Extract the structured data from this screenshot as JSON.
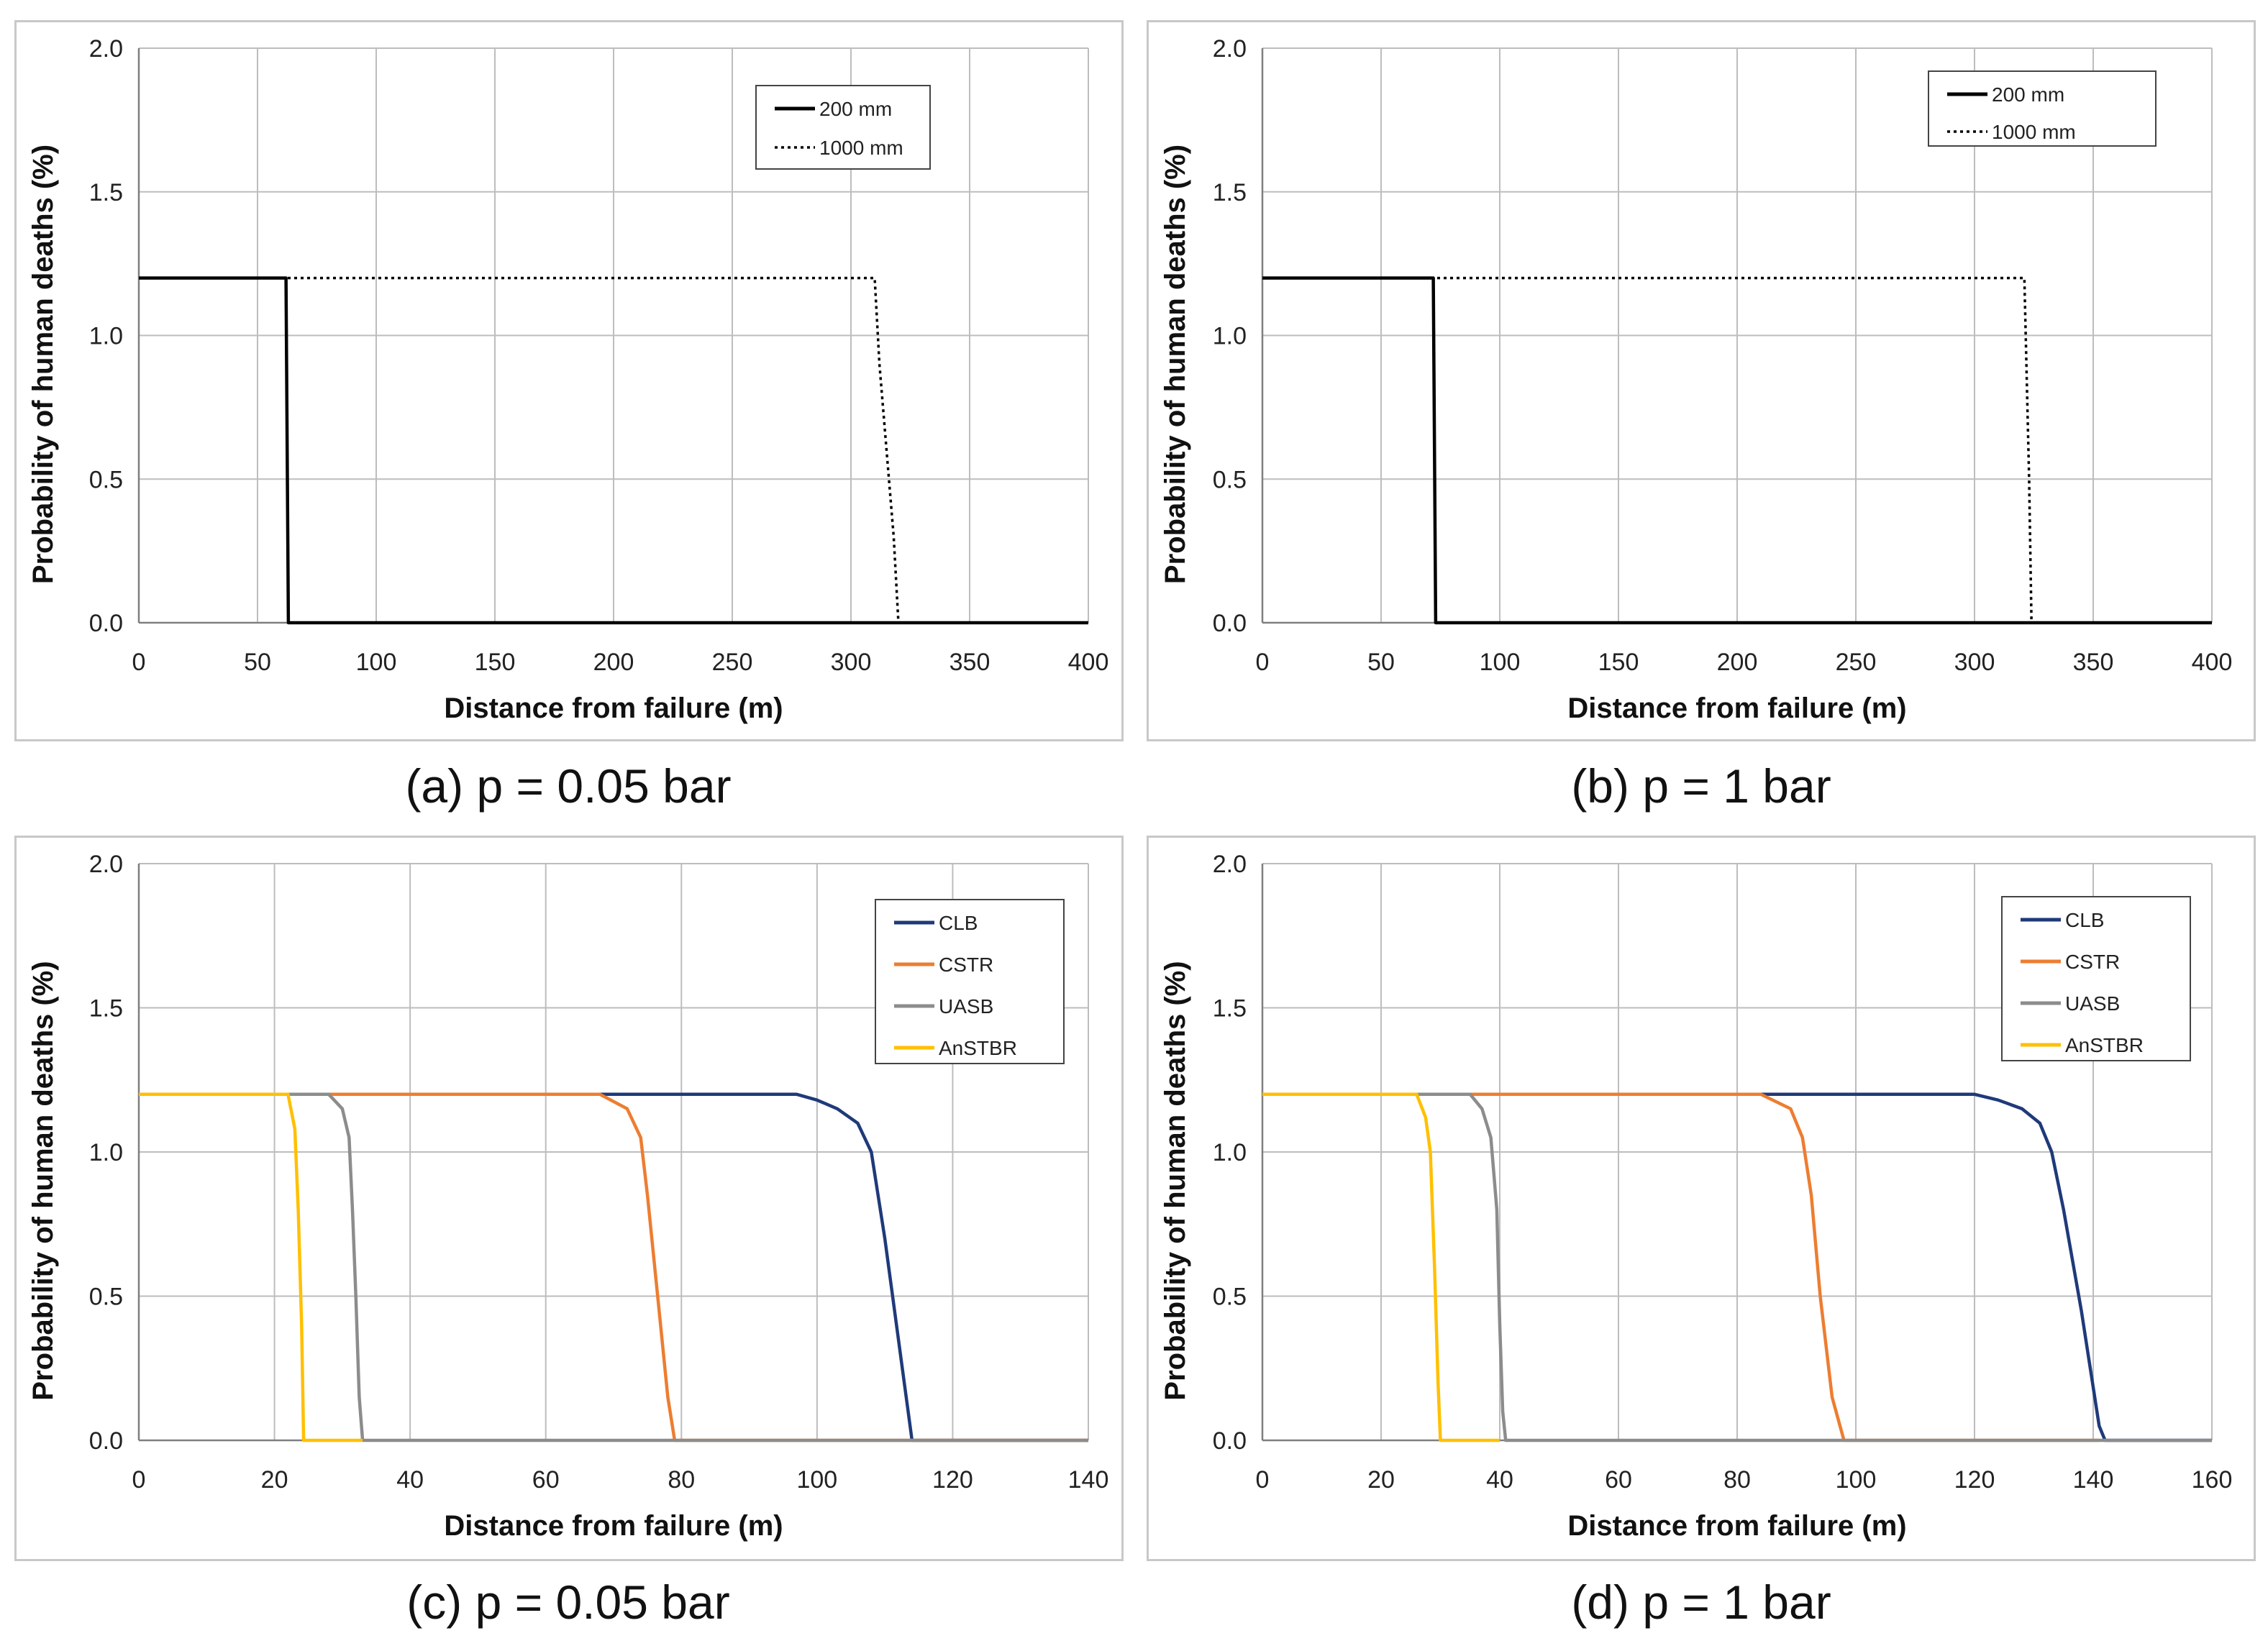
{
  "chart_data": [
    {
      "type": "line",
      "caption": "(a) p = 0.05 bar",
      "xlabel": "Distance from failure (m)",
      "ylabel": "Probability of human deaths (%)",
      "xlim": [
        0,
        400
      ],
      "ylim": [
        0,
        2.0
      ],
      "xticks": [
        0,
        50,
        100,
        150,
        200,
        250,
        300,
        350,
        400
      ],
      "yticks": [
        0.0,
        0.5,
        1.0,
        1.5,
        2.0
      ],
      "ytick_labels": [
        "0.0",
        "0.5",
        "1.0",
        "1.5",
        "2.0"
      ],
      "legend_position": "top-right",
      "series": [
        {
          "name": "200 mm",
          "color": "#000000",
          "style": "solid",
          "x": [
            0,
            62,
            63,
            400
          ],
          "y": [
            1.2,
            1.2,
            0,
            0
          ]
        },
        {
          "name": "1000 mm",
          "color": "#000000",
          "style": "dotted",
          "x": [
            0,
            310,
            312,
            315,
            318,
            320
          ],
          "y": [
            1.2,
            1.2,
            0.9,
            0.6,
            0.3,
            0
          ]
        }
      ]
    },
    {
      "type": "line",
      "caption": "(b) p = 1 bar",
      "xlabel": "Distance from failure (m)",
      "ylabel": "Probability of human deaths (%)",
      "xlim": [
        0,
        400
      ],
      "ylim": [
        0,
        2.0
      ],
      "xticks": [
        0,
        50,
        100,
        150,
        200,
        250,
        300,
        350,
        400
      ],
      "yticks": [
        0.0,
        0.5,
        1.0,
        1.5,
        2.0
      ],
      "ytick_labels": [
        "0.0",
        "0.5",
        "1.0",
        "1.5",
        "2.0"
      ],
      "legend_position": "top-right",
      "series": [
        {
          "name": "200 mm",
          "color": "#000000",
          "style": "solid",
          "x": [
            0,
            72,
            73,
            400
          ],
          "y": [
            1.2,
            1.2,
            0,
            0
          ]
        },
        {
          "name": "1000 mm",
          "color": "#000000",
          "style": "dotted",
          "x": [
            0,
            321,
            323,
            324
          ],
          "y": [
            1.2,
            1.2,
            0.5,
            0
          ]
        }
      ]
    },
    {
      "type": "line",
      "caption": "(c) p = 0.05 bar",
      "xlabel": "Distance from failure (m)",
      "ylabel": "Probability of human deaths (%)",
      "xlim": [
        0,
        140
      ],
      "ylim": [
        0,
        2.0
      ],
      "xticks": [
        0,
        20,
        40,
        60,
        80,
        100,
        120,
        140
      ],
      "yticks": [
        0.0,
        0.5,
        1.0,
        1.5,
        2.0
      ],
      "ytick_labels": [
        "0.0",
        "0.5",
        "1.0",
        "1.5",
        "2.0"
      ],
      "legend_position": "top-right",
      "series": [
        {
          "name": "CLB",
          "color": "#1f3a7a",
          "style": "solid",
          "x": [
            0,
            90,
            97,
            100,
            103,
            106,
            108,
            110,
            112,
            114,
            140
          ],
          "y": [
            1.2,
            1.2,
            1.2,
            1.18,
            1.15,
            1.1,
            1.0,
            0.7,
            0.35,
            0,
            0
          ]
        },
        {
          "name": "CSTR",
          "color": "#ed7d31",
          "style": "solid",
          "x": [
            0,
            68,
            72,
            74,
            75,
            76.5,
            78,
            79,
            140
          ],
          "y": [
            1.2,
            1.2,
            1.15,
            1.05,
            0.85,
            0.5,
            0.15,
            0,
            0
          ]
        },
        {
          "name": "UASB",
          "color": "#8c8c8c",
          "style": "solid",
          "x": [
            0,
            28,
            30,
            31,
            31.5,
            32,
            32.5,
            33,
            140
          ],
          "y": [
            1.2,
            1.2,
            1.15,
            1.05,
            0.8,
            0.5,
            0.15,
            0,
            0
          ]
        },
        {
          "name": "AnSTBR",
          "color": "#ffc000",
          "style": "solid",
          "x": [
            0,
            22,
            23,
            23.5,
            24,
            24.3,
            33
          ],
          "y": [
            1.2,
            1.2,
            1.08,
            0.8,
            0.4,
            0,
            0
          ]
        }
      ]
    },
    {
      "type": "line",
      "caption": "(d) p = 1 bar",
      "xlabel": "Distance from failure (m)",
      "ylabel": "Probability of human deaths (%)",
      "xlim": [
        0,
        160
      ],
      "ylim": [
        0,
        2.0
      ],
      "xticks": [
        0,
        20,
        40,
        60,
        80,
        100,
        120,
        140,
        160
      ],
      "yticks": [
        0.0,
        0.5,
        1.0,
        1.5,
        2.0
      ],
      "ytick_labels": [
        "0.0",
        "0.5",
        "1.0",
        "1.5",
        "2.0"
      ],
      "legend_position": "top-right",
      "series": [
        {
          "name": "CLB",
          "color": "#1f3a7a",
          "style": "solid",
          "x": [
            0,
            112,
            120,
            124,
            128,
            131,
            133,
            135,
            138,
            141,
            142,
            160
          ],
          "y": [
            1.2,
            1.2,
            1.2,
            1.18,
            1.15,
            1.1,
            1.0,
            0.8,
            0.45,
            0.05,
            0,
            0
          ]
        },
        {
          "name": "CSTR",
          "color": "#ed7d31",
          "style": "solid",
          "x": [
            0,
            84,
            89,
            91,
            92.5,
            94,
            96,
            98,
            141
          ],
          "y": [
            1.2,
            1.2,
            1.15,
            1.05,
            0.85,
            0.5,
            0.15,
            0,
            0
          ]
        },
        {
          "name": "UASB",
          "color": "#8c8c8c",
          "style": "solid",
          "x": [
            0,
            35,
            37,
            38.5,
            39.5,
            40,
            40.5,
            41,
            160
          ],
          "y": [
            1.2,
            1.2,
            1.15,
            1.05,
            0.8,
            0.4,
            0.1,
            0,
            0
          ]
        },
        {
          "name": "AnSTBR",
          "color": "#ffc000",
          "style": "solid",
          "x": [
            0,
            26,
            27.5,
            28.3,
            29,
            29.6,
            30,
            40
          ],
          "y": [
            1.2,
            1.2,
            1.12,
            1.0,
            0.6,
            0.2,
            0,
            0
          ]
        }
      ]
    }
  ]
}
